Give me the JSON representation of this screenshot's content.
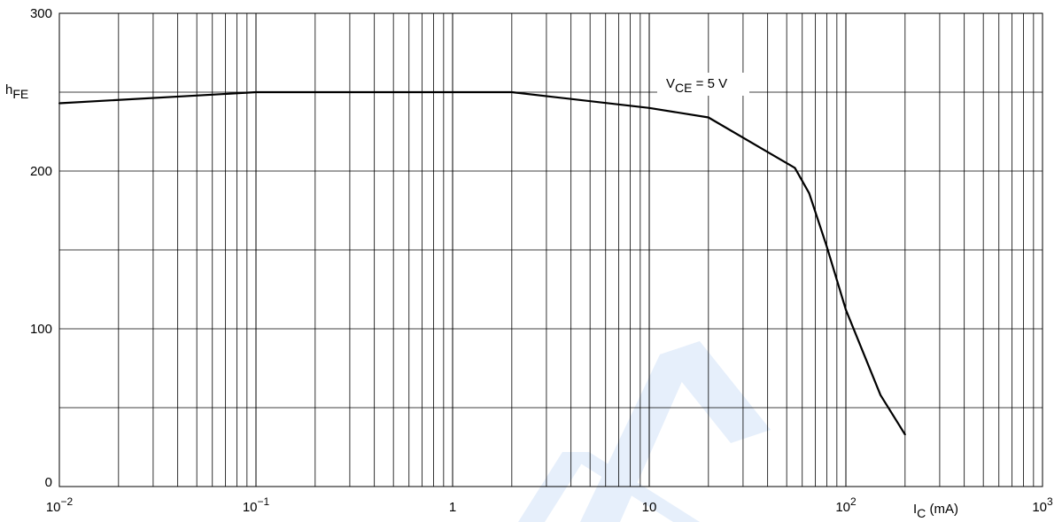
{
  "chart_data": {
    "type": "line",
    "title": "",
    "xscale": "log",
    "yscale": "linear",
    "xlim": [
      0.01,
      1000
    ],
    "ylim": [
      0,
      300
    ],
    "grid": true,
    "x_ticks": [
      {
        "value": 0.01,
        "base": "10",
        "exp": "−2"
      },
      {
        "value": 0.1,
        "base": "10",
        "exp": "−1"
      },
      {
        "value": 1,
        "base": "1",
        "exp": ""
      },
      {
        "value": 10,
        "base": "10",
        "exp": ""
      },
      {
        "value": 100,
        "base": "10",
        "exp": "2"
      },
      {
        "value": 1000,
        "base": "10",
        "exp": "3"
      }
    ],
    "y_ticks": [
      {
        "value": 0,
        "label": "0"
      },
      {
        "value": 100,
        "label": "100"
      },
      {
        "value": 200,
        "label": "200"
      },
      {
        "value": 300,
        "label": "300"
      }
    ],
    "y_gridlines": [
      50,
      100,
      150,
      200,
      250
    ],
    "xlabel": {
      "main": "I",
      "sub": "C",
      "suffix": " (mA)"
    },
    "ylabel": {
      "main": "h",
      "sub": "FE"
    },
    "annotation": {
      "main": "V",
      "sub": "CE",
      "suffix": " = 5 V"
    },
    "series": [
      {
        "points": [
          {
            "x": 0.01,
            "y": 243
          },
          {
            "x": 0.1,
            "y": 250
          },
          {
            "x": 2,
            "y": 250
          },
          {
            "x": 10,
            "y": 240
          },
          {
            "x": 20,
            "y": 234
          },
          {
            "x": 40,
            "y": 212
          },
          {
            "x": 55,
            "y": 202
          },
          {
            "x": 65,
            "y": 186
          },
          {
            "x": 80,
            "y": 152
          },
          {
            "x": 100,
            "y": 112
          },
          {
            "x": 150,
            "y": 58
          },
          {
            "x": 200,
            "y": 33
          }
        ]
      }
    ]
  }
}
